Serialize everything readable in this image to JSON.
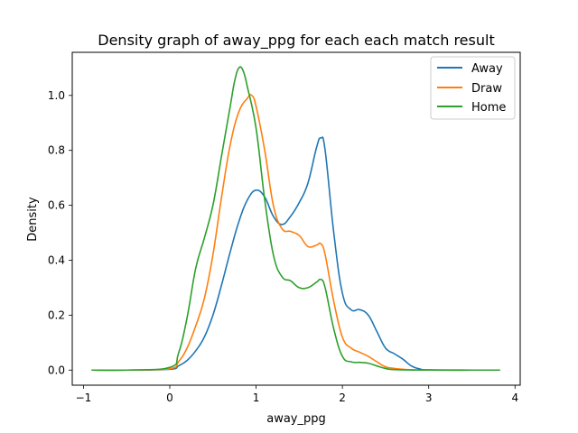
{
  "chart_data": {
    "type": "line",
    "title": "Density graph of away_ppg for each each match result",
    "xlabel": "away_ppg",
    "ylabel": "Density",
    "xlim": [
      -1.13,
      4.06
    ],
    "ylim": [
      -0.055,
      1.157
    ],
    "xticks": [
      -1,
      0,
      1,
      2,
      3,
      4
    ],
    "xtick_labels": [
      "−1",
      "0",
      "1",
      "2",
      "3",
      "4"
    ],
    "yticks": [
      0.0,
      0.2,
      0.4,
      0.6,
      0.8,
      1.0
    ],
    "ytick_labels": [
      "0.0",
      "0.2",
      "0.4",
      "0.6",
      "0.8",
      "1.0"
    ],
    "grid": false,
    "legend_position": "top-right",
    "series": [
      {
        "name": "Away",
        "color": "#1f77b4",
        "x": [
          -0.9,
          -0.5,
          0.0,
          0.1,
          0.2,
          0.3,
          0.4,
          0.5,
          0.6,
          0.7,
          0.8,
          0.9,
          1.0,
          1.1,
          1.2,
          1.3,
          1.4,
          1.5,
          1.6,
          1.7,
          1.75,
          1.8,
          1.9,
          2.0,
          2.1,
          2.2,
          2.3,
          2.4,
          2.5,
          2.6,
          2.7,
          2.8,
          2.9,
          3.0,
          3.5,
          3.82
        ],
        "y": [
          0.0,
          0.0,
          0.003,
          0.015,
          0.035,
          0.07,
          0.12,
          0.2,
          0.31,
          0.43,
          0.54,
          0.62,
          0.655,
          0.63,
          0.56,
          0.53,
          0.56,
          0.61,
          0.68,
          0.81,
          0.845,
          0.8,
          0.5,
          0.28,
          0.22,
          0.22,
          0.2,
          0.14,
          0.08,
          0.06,
          0.04,
          0.015,
          0.004,
          0.001,
          0.0,
          0.0
        ]
      },
      {
        "name": "Draw",
        "color": "#ff7f0e",
        "x": [
          -0.9,
          -0.5,
          0.0,
          0.1,
          0.2,
          0.3,
          0.4,
          0.5,
          0.6,
          0.7,
          0.8,
          0.9,
          0.95,
          1.0,
          1.1,
          1.2,
          1.3,
          1.4,
          1.5,
          1.6,
          1.7,
          1.75,
          1.8,
          1.9,
          2.0,
          2.1,
          2.2,
          2.3,
          2.4,
          2.5,
          2.6,
          2.7,
          2.8,
          3.0,
          3.5,
          3.82
        ],
        "y": [
          0.0,
          0.0,
          0.005,
          0.03,
          0.08,
          0.16,
          0.26,
          0.42,
          0.63,
          0.82,
          0.94,
          0.99,
          1.0,
          0.96,
          0.8,
          0.6,
          0.515,
          0.505,
          0.49,
          0.45,
          0.455,
          0.46,
          0.42,
          0.25,
          0.12,
          0.08,
          0.065,
          0.05,
          0.03,
          0.012,
          0.006,
          0.003,
          0.001,
          0.0,
          0.0,
          0.0
        ]
      },
      {
        "name": "Home",
        "color": "#2ca02c",
        "x": [
          -0.9,
          -0.5,
          0.0,
          0.1,
          0.2,
          0.3,
          0.4,
          0.5,
          0.6,
          0.7,
          0.75,
          0.8,
          0.85,
          0.9,
          1.0,
          1.1,
          1.2,
          1.3,
          1.4,
          1.5,
          1.6,
          1.7,
          1.75,
          1.8,
          1.9,
          2.0,
          2.1,
          2.2,
          2.3,
          2.4,
          2.5,
          2.6,
          3.0,
          3.5,
          3.82
        ],
        "y": [
          0.0,
          0.0,
          0.01,
          0.06,
          0.19,
          0.37,
          0.48,
          0.6,
          0.78,
          0.96,
          1.05,
          1.1,
          1.09,
          1.03,
          0.88,
          0.62,
          0.42,
          0.34,
          0.325,
          0.3,
          0.3,
          0.32,
          0.33,
          0.3,
          0.15,
          0.05,
          0.03,
          0.028,
          0.025,
          0.015,
          0.006,
          0.002,
          0.0,
          0.0,
          0.0
        ]
      }
    ]
  }
}
